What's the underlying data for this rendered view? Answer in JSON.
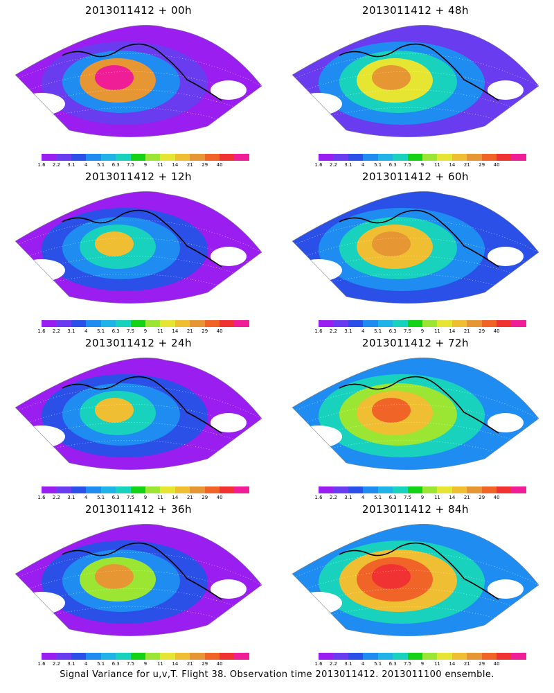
{
  "colorbar": {
    "colors": [
      "#9a1ef0",
      "#6a3cf0",
      "#2a50e8",
      "#1e8cf0",
      "#20b4e6",
      "#18d2be",
      "#14d214",
      "#9be632",
      "#e6e632",
      "#f0be32",
      "#e69632",
      "#f06428",
      "#f03232",
      "#f01e96"
    ],
    "tick_labels": [
      "1.6",
      "2.2",
      "3.1",
      "4",
      "5.1",
      "6.3",
      "7.5",
      "9",
      "11",
      "14",
      "21",
      "29",
      "40"
    ]
  },
  "panels": [
    {
      "title": "2013011412 + 00h"
    },
    {
      "title": "2013011412 + 48h"
    },
    {
      "title": "2013011412 + 12h"
    },
    {
      "title": "2013011412 + 60h"
    },
    {
      "title": "2013011412 + 24h"
    },
    {
      "title": "2013011412 + 72h"
    },
    {
      "title": "2013011412 + 36h"
    },
    {
      "title": "2013011412 + 84h"
    }
  ],
  "caption": "Signal Variance for u,v,T. Flight 38. Observation time 2013011412. 2013011100 ensemble."
}
